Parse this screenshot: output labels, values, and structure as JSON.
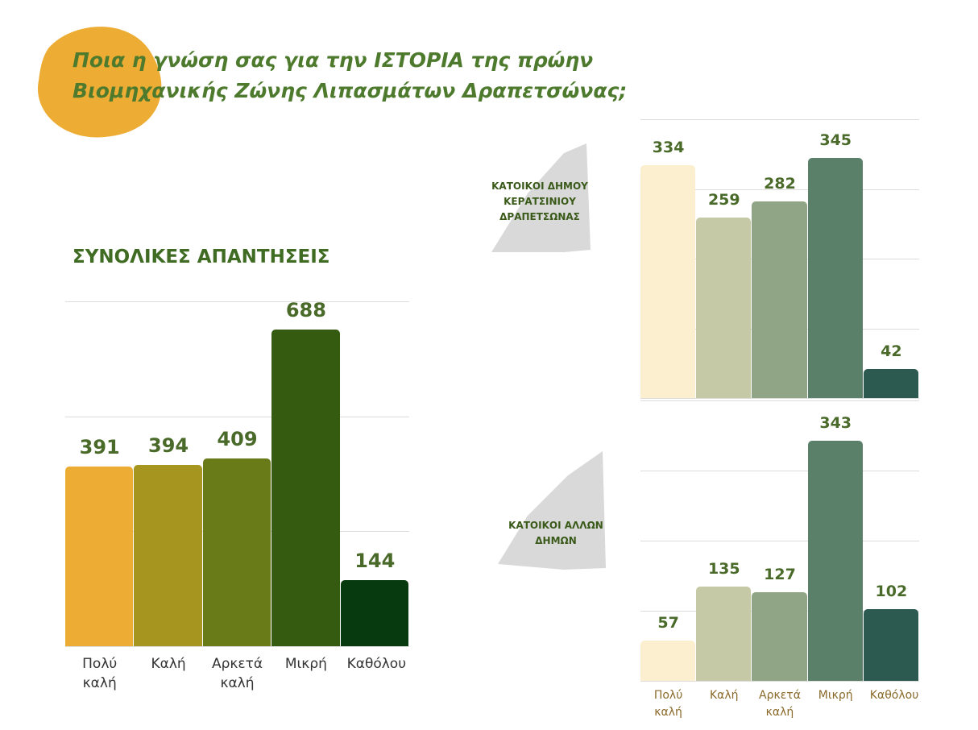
{
  "title": "Ποια η γνώση σας για την ΙΣΤΟΡΙΑ της πρώην Βιομηχανικής Ζώνης Λιπασμάτων Δραπετσώνας;",
  "chart_data": [
    {
      "type": "bar",
      "title": "ΣΥΝΟΛΙΚΕΣ ΑΠΑΝΤΗΣΕΙΣ",
      "categories": [
        "Πολύ καλή",
        "Καλή",
        "Αρκετά καλή",
        "Μικρή",
        "Καθόλου"
      ],
      "values": [
        391,
        394,
        409,
        688,
        144
      ],
      "colors": [
        "#edad35",
        "#a6951f",
        "#697a18",
        "#355b10",
        "#073a0e"
      ],
      "ylim": [
        0,
        750
      ],
      "yticks": [
        0,
        250,
        500,
        750
      ],
      "grid": true
    },
    {
      "type": "bar",
      "title": "ΚΑΤΟΙΚΟΙ ΔΗΜΟΥ ΚΕΡΑΤΣΙΝΙΟΥ ΔΡΑΠΕΤΣΩΝΑΣ",
      "values": [
        334,
        259,
        282,
        345,
        42
      ],
      "colors": [
        "#fcefcf",
        "#c5c9a6",
        "#8fa585",
        "#5a806a",
        "#2d5a50"
      ],
      "ylim": [
        0,
        400
      ],
      "yticks": [
        0,
        100,
        200,
        300,
        400
      ],
      "grid": true
    },
    {
      "type": "bar",
      "title": "ΚΑΤΟΙΚΟΙ ΑΛΛΩΝ ΔΗΜΩΝ",
      "categories": [
        "Πολύ καλή",
        "Καλή",
        "Αρκετά καλή",
        "Μικρή",
        "Καθόλου"
      ],
      "values": [
        57,
        135,
        127,
        343,
        102
      ],
      "colors": [
        "#fcefcf",
        "#c5c9a6",
        "#8fa585",
        "#5a806a",
        "#2d5a50"
      ],
      "ylim": [
        0,
        400
      ],
      "yticks": [
        0,
        100,
        200,
        300,
        400
      ],
      "grid": true
    }
  ]
}
